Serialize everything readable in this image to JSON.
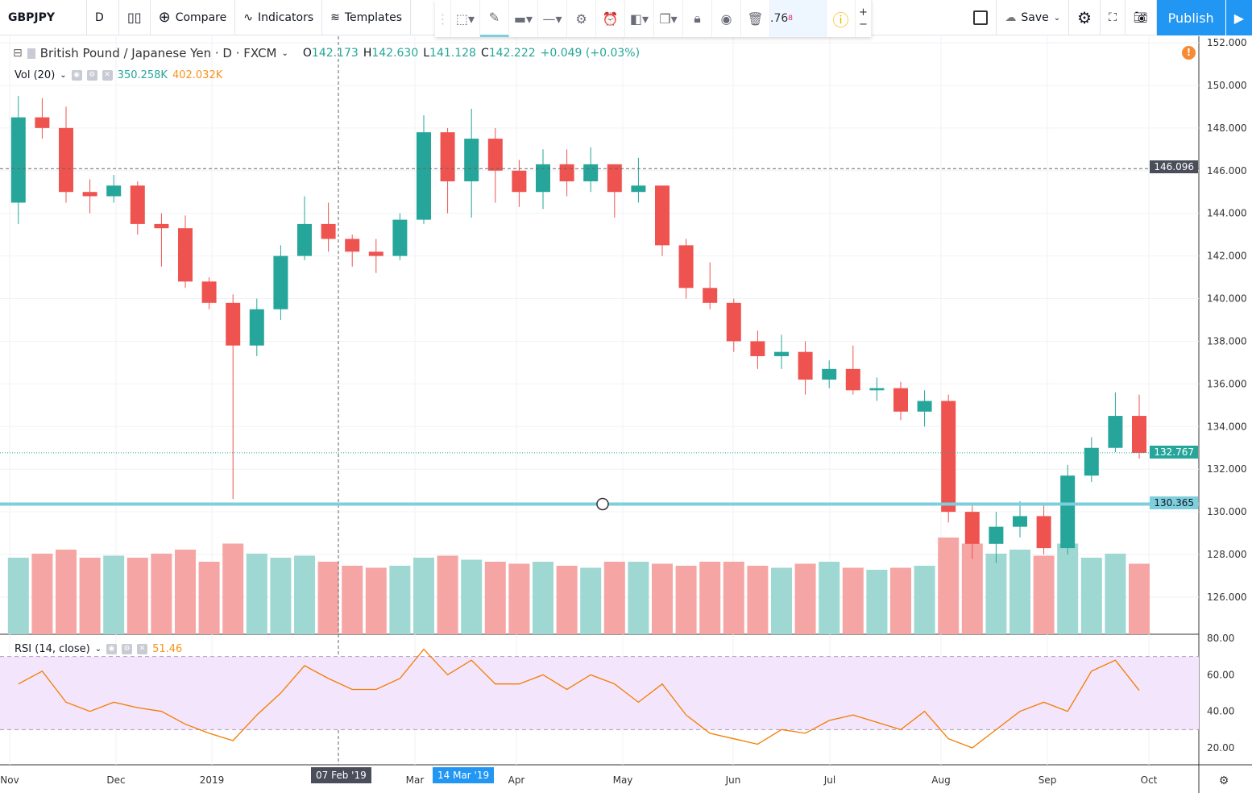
{
  "toolbar": {
    "symbol": "GBPJPY",
    "interval": "D",
    "compare": "Compare",
    "indicators": "Indicators",
    "templates": "Templates",
    "save": "Save",
    "publish": "Publish",
    "price_fragment": ".76",
    "price_fragment_sup": "8"
  },
  "legend": {
    "title": "British Pound / Japanese Yen · D · FXCM",
    "o": "O",
    "o_val": "142.173",
    "h": "H",
    "h_val": "142.630",
    "l": "L",
    "l_val": "141.128",
    "c": "C",
    "c_val": "142.222",
    "chg": "+0.049 (+0.03%)",
    "vol_label": "Vol (20)",
    "vol_val1": "350.258K",
    "vol_val2": "402.032K",
    "rsi_label": "RSI (14, close)",
    "rsi_val": "51.46"
  },
  "colors": {
    "up": "#26a69a",
    "down": "#ef5350",
    "hline": "#7ecfdc",
    "rsi": "#f57c00",
    "rsi_band": "#f3e5fb",
    "accent": "#2196f3"
  },
  "axis": {
    "crosshair_price": "146.096",
    "last_price": "132.767",
    "hline_price": "130.365",
    "crosshair_date": "07 Feb '19",
    "hover_date": "14 Mar '19"
  },
  "chart_data": {
    "type": "candlestick",
    "price_ticks": [
      "152.000",
      "150.000",
      "148.000",
      "146.000",
      "144.000",
      "142.000",
      "140.000",
      "138.000",
      "136.000",
      "134.000",
      "132.000",
      "130.000",
      "128.000",
      "126.000"
    ],
    "ylim": [
      124.6,
      153.2
    ],
    "x_ticks": [
      "Nov",
      "Dec",
      "2019",
      "Mar",
      "Apr",
      "May",
      "Jun",
      "Jul",
      "Aug",
      "Sep",
      "Oct"
    ],
    "candles": [
      [
        144.5,
        149.5,
        143.5,
        148.5
      ],
      [
        148.5,
        149.4,
        147.5,
        148.0
      ],
      [
        148,
        149,
        144.5,
        145
      ],
      [
        145,
        145.6,
        144,
        144.8
      ],
      [
        144.8,
        145.8,
        144.5,
        145.3
      ],
      [
        145.3,
        145.5,
        143,
        143.5
      ],
      [
        143.5,
        144,
        141.5,
        143.3
      ],
      [
        143.3,
        143.9,
        140.5,
        140.8
      ],
      [
        140.8,
        141,
        139.5,
        139.8
      ],
      [
        139.8,
        140.2,
        130.6,
        137.8
      ],
      [
        137.8,
        140,
        137.3,
        139.5
      ],
      [
        139.5,
        142.5,
        139,
        142
      ],
      [
        142,
        144.8,
        141.8,
        143.5
      ],
      [
        143.5,
        144.5,
        142.2,
        142.8
      ],
      [
        142.8,
        143,
        141.5,
        142.2
      ],
      [
        142.2,
        142.8,
        141.2,
        142
      ],
      [
        142,
        144,
        141.8,
        143.7
      ],
      [
        143.7,
        148.6,
        143.5,
        147.8
      ],
      [
        147.8,
        148,
        144,
        145.5
      ],
      [
        145.5,
        148.9,
        143.8,
        147.5
      ],
      [
        147.5,
        148,
        144.5,
        146
      ],
      [
        146,
        146.5,
        144.3,
        145
      ],
      [
        145,
        147,
        144.2,
        146.3
      ],
      [
        146.3,
        147,
        144.8,
        145.5
      ],
      [
        145.5,
        147.1,
        145,
        146.3
      ],
      [
        146.3,
        146.3,
        143.8,
        145
      ],
      [
        145,
        146.6,
        144.5,
        145.3
      ],
      [
        145.3,
        145.3,
        142,
        142.5
      ],
      [
        142.5,
        142.8,
        140,
        140.5
      ],
      [
        140.5,
        141.7,
        139.5,
        139.8
      ],
      [
        139.8,
        140,
        137.5,
        138
      ],
      [
        138,
        138.5,
        136.7,
        137.3
      ],
      [
        137.3,
        138.3,
        136.7,
        137.5
      ],
      [
        137.5,
        138,
        135.5,
        136.2
      ],
      [
        136.2,
        137.1,
        135.8,
        136.7
      ],
      [
        136.7,
        137.8,
        135.5,
        135.7
      ],
      [
        135.7,
        136.3,
        135.2,
        135.8
      ],
      [
        135.8,
        136.1,
        134.3,
        134.7
      ],
      [
        134.7,
        135.7,
        134,
        135.2
      ],
      [
        135.2,
        135.5,
        129.5,
        130
      ],
      [
        130,
        130.3,
        127.8,
        128.5
      ],
      [
        128.5,
        130,
        127.6,
        129.3
      ],
      [
        129.3,
        130.5,
        128.8,
        129.8
      ],
      [
        129.8,
        130.4,
        128,
        128.3
      ],
      [
        128.3,
        132.2,
        128,
        131.7
      ],
      [
        131.7,
        133.5,
        131.4,
        133
      ],
      [
        133,
        135.6,
        132.8,
        134.5
      ],
      [
        134.5,
        135.5,
        132.5,
        132.767
      ]
    ],
    "volume_k": [
      380,
      400,
      420,
      380,
      390,
      380,
      400,
      420,
      360,
      450,
      400,
      380,
      390,
      360,
      340,
      330,
      340,
      380,
      390,
      370,
      360,
      350,
      360,
      340,
      330,
      360,
      360,
      350,
      340,
      360,
      360,
      340,
      330,
      350,
      360,
      330,
      320,
      330,
      340,
      480,
      450,
      400,
      420,
      390,
      450,
      380,
      400,
      350
    ],
    "rsi": [
      55,
      62,
      45,
      40,
      45,
      42,
      40,
      33,
      28,
      24,
      38,
      50,
      65,
      58,
      52,
      52,
      58,
      74,
      60,
      68,
      55,
      55,
      60,
      52,
      60,
      55,
      45,
      55,
      38,
      28,
      25,
      22,
      30,
      28,
      35,
      38,
      34,
      30,
      40,
      25,
      20,
      30,
      40,
      45,
      40,
      62,
      68,
      51.46
    ],
    "rsi_ticks": [
      "80.00",
      "60.00",
      "40.00",
      "20.00"
    ],
    "rsi_band": [
      30,
      70
    ]
  }
}
